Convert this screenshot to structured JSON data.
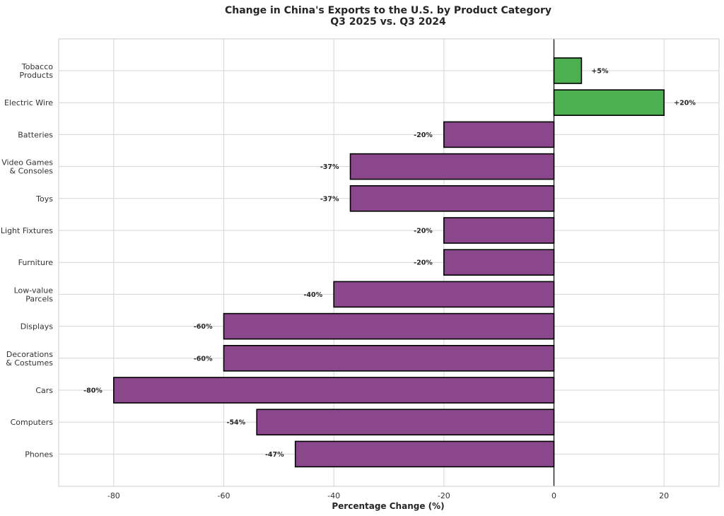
{
  "chart_data": {
    "type": "bar",
    "orientation": "horizontal",
    "title": "Change in China's Exports to the U.S. by Product Category",
    "subtitle": "Q3 2025 vs. Q3 2024",
    "xlabel": "Percentage Change (%)",
    "ylabel": "",
    "xlim": [
      -90,
      30
    ],
    "xticks": [
      -80,
      -60,
      -40,
      -20,
      0,
      20
    ],
    "grid": true,
    "categories": [
      [
        "Tobacco",
        "Products"
      ],
      [
        "Electric Wire"
      ],
      [
        "Batteries"
      ],
      [
        "Video Games",
        "& Consoles"
      ],
      [
        "Toys"
      ],
      [
        "Light Fixtures"
      ],
      [
        "Furniture"
      ],
      [
        "Low-value",
        "Parcels"
      ],
      [
        "Displays"
      ],
      [
        "Decorations",
        "& Costumes"
      ],
      [
        "Cars"
      ],
      [
        "Computers"
      ],
      [
        "Phones"
      ]
    ],
    "values": [
      5,
      20,
      -20,
      -37,
      -37,
      -20,
      -20,
      -40,
      -60,
      -60,
      -80,
      -54,
      -47
    ],
    "data_labels": [
      "+5%",
      "+20%",
      "-20%",
      "-37%",
      "-37%",
      "-20%",
      "-20%",
      "-40%",
      "-60%",
      "-60%",
      "-80%",
      "-54%",
      "-47%"
    ],
    "colors": {
      "positive": "#4caf50",
      "negative": "#8b478b",
      "edge": "#000000",
      "grid": "#d5d5d5",
      "zero_line": "#000000"
    }
  }
}
